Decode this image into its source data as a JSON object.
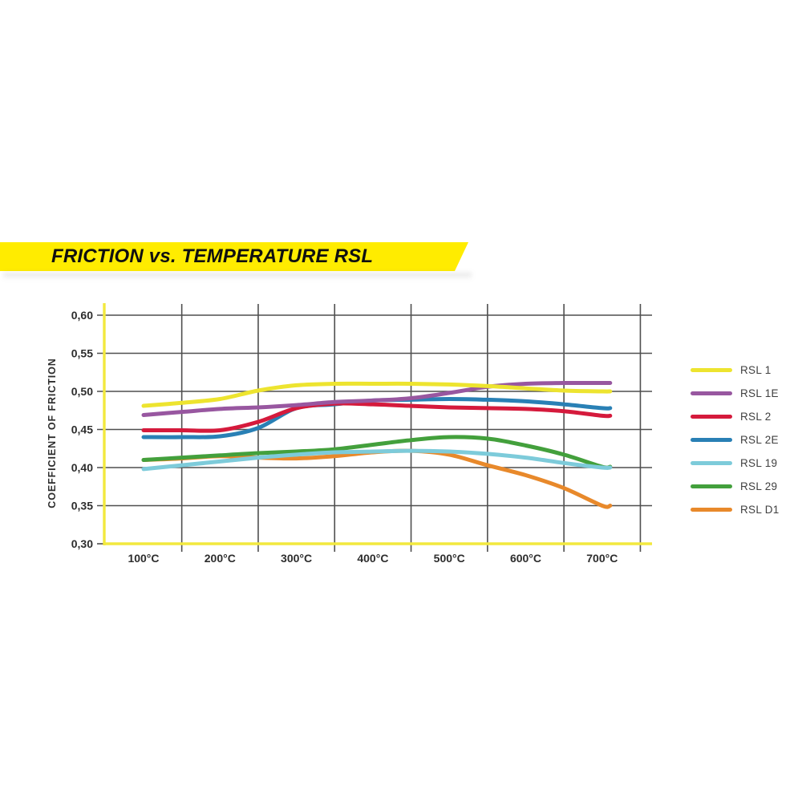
{
  "banner": {
    "title": "FRICTION vs. TEMPERATURE RSL",
    "background": "#FFEC00",
    "text_color": "#101010"
  },
  "chart_data": {
    "type": "line",
    "title": "FRICTION vs. TEMPERATURE RSL",
    "xlabel": "",
    "ylabel": "COEFFICIENT OF FRICTION",
    "x_unit": "°C",
    "x": [
      100,
      150,
      200,
      250,
      300,
      350,
      400,
      450,
      500,
      550,
      600,
      650,
      700
    ],
    "x_tick_labels": [
      "100°C",
      "200°C",
      "300°C",
      "400°C",
      "500°C",
      "600°C",
      "700°C"
    ],
    "x_tick_values": [
      100,
      200,
      300,
      400,
      500,
      600,
      700
    ],
    "x_gridline_values": [
      150,
      250,
      350,
      450,
      550,
      650,
      750
    ],
    "ylim": [
      0.3,
      0.6
    ],
    "y_ticks": {
      "values": [
        0.6,
        0.55,
        0.5,
        0.45,
        0.4,
        0.35,
        0.3
      ],
      "labels": [
        "0,60",
        "0,55",
        "0,50",
        "0,45",
        "0,40",
        "0,35",
        "0,30"
      ]
    },
    "grid": true,
    "legend_position": "right",
    "axis_color": "#F2E93E",
    "grid_color": "#4F4F4F",
    "tick_text_color": "#2d2d2d",
    "series": [
      {
        "name": "RSL 1",
        "color": "#EDE42F",
        "values": [
          0.481,
          0.485,
          0.49,
          0.501,
          0.508,
          0.51,
          0.51,
          0.51,
          0.509,
          0.507,
          0.504,
          0.501,
          0.5
        ]
      },
      {
        "name": "RSL 1E",
        "color": "#9857A0",
        "values": [
          0.469,
          0.473,
          0.477,
          0.479,
          0.482,
          0.486,
          0.488,
          0.491,
          0.498,
          0.506,
          0.51,
          0.511,
          0.511
        ]
      },
      {
        "name": "RSL 2",
        "color": "#D51A3C",
        "values": [
          0.449,
          0.449,
          0.449,
          0.46,
          0.478,
          0.484,
          0.483,
          0.481,
          0.479,
          0.478,
          0.477,
          0.474,
          0.468
        ]
      },
      {
        "name": "RSL 2E",
        "color": "#2980B5",
        "values": [
          0.44,
          0.44,
          0.441,
          0.452,
          0.478,
          0.483,
          0.488,
          0.489,
          0.49,
          0.489,
          0.487,
          0.483,
          0.478
        ]
      },
      {
        "name": "RSL 19",
        "color": "#7DCBDA",
        "values": [
          0.398,
          0.403,
          0.408,
          0.413,
          0.417,
          0.42,
          0.421,
          0.422,
          0.421,
          0.418,
          0.413,
          0.406,
          0.4
        ]
      },
      {
        "name": "RSL 29",
        "color": "#43A03C",
        "values": [
          0.41,
          0.413,
          0.416,
          0.419,
          0.421,
          0.424,
          0.43,
          0.436,
          0.44,
          0.438,
          0.429,
          0.417,
          0.401
        ]
      },
      {
        "name": "RSL D1",
        "color": "#E8892B",
        "values": [
          0.41,
          0.412,
          0.415,
          0.413,
          0.412,
          0.415,
          0.42,
          0.422,
          0.417,
          0.403,
          0.39,
          0.373,
          0.35
        ]
      }
    ]
  },
  "legend": {
    "items": [
      "RSL 1",
      "RSL 1E",
      "RSL 2",
      "RSL 2E",
      "RSL 19",
      "RSL 29",
      "RSL D1"
    ]
  }
}
